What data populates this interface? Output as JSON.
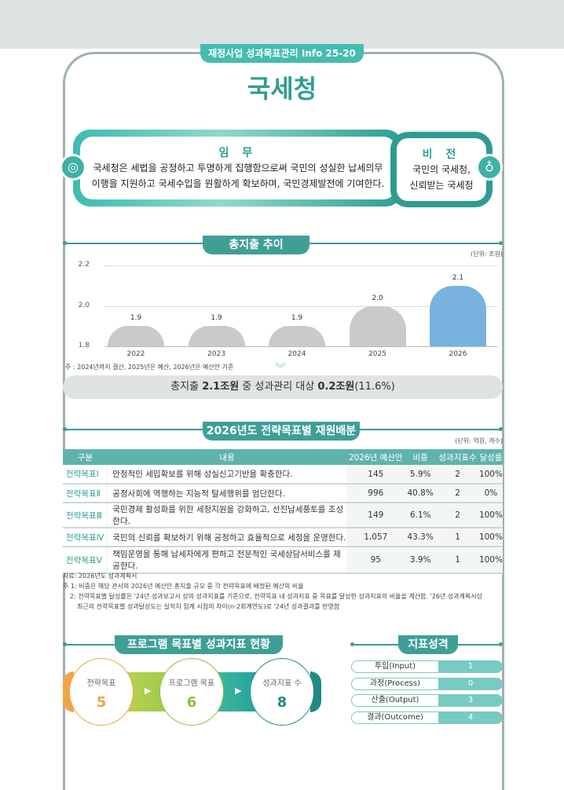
{
  "header": {
    "series_badge": "재정사업 성과목표관리 Info 25-20",
    "title": "국세청"
  },
  "mission": {
    "heading": "임 무",
    "line1": "국세청은 세법을 공정하고 투명하게 집행함으로써 국민의 성실한 납세의무",
    "line2": "이행을 지원하고 국세수입을 원활하게 확보하며, 국민경제발전에 기여한다.",
    "icon": "target-icon"
  },
  "vision": {
    "heading": "비 전",
    "line1": "국민의 국세청,",
    "line2": "신뢰받는 국세청",
    "icon": "lightbulb-icon"
  },
  "spending": {
    "section_title": "총지출 추이",
    "unit": "(단위: 조원)",
    "note": "주 : 2024년까지 결산, 2025년은 예산, 2026년은 예산안 기준",
    "summary": {
      "p1": "총지출 ",
      "v1": "2.1조원",
      "p2": " 중 성과관리 대상 ",
      "v2": "0.2조원",
      "p3": "(11.6%)"
    }
  },
  "chart_data": {
    "type": "bar",
    "categories": [
      "2022",
      "2023",
      "2024",
      "2025",
      "2026"
    ],
    "values": [
      1.9,
      1.9,
      1.9,
      2.0,
      2.1
    ],
    "value_labels": [
      "1.9",
      "1.9",
      "1.9",
      "2.0",
      "2.1"
    ],
    "ylim": [
      1.8,
      2.2
    ],
    "yticks": [
      "1.8",
      "2.0",
      "2.2"
    ],
    "grid": true,
    "unit": "(단위: 조원)",
    "colors": [
      "#c9cacb",
      "#c9cacb",
      "#c9cacb",
      "#c9cacb",
      "#78b3e0"
    ]
  },
  "allocation": {
    "section_title": "2026년도 전략목표별 재원배분",
    "unit": "(단위: 억원, 개수)",
    "columns": [
      "구분",
      "내용",
      "2026년 예산안",
      "비중",
      "성과지표수",
      "달성률"
    ],
    "rows": [
      {
        "goal": "전략목표Ⅰ",
        "content": "안정적인 세입확보를 위해 성실신고기반을 확충한다.",
        "budget": "145",
        "share": "5.9%",
        "indicators": "2",
        "rate": "100%"
      },
      {
        "goal": "전략목표Ⅱ",
        "content": "공정사회에 역행하는 지능적 탈세행위를 엄단한다.",
        "budget": "996",
        "share": "40.8%",
        "indicators": "2",
        "rate": "0%"
      },
      {
        "goal": "전략목표Ⅲ",
        "content": "국민경제 활성화를 위한 세정지원을 강화하고, 선진납세풍토를 조성한다.",
        "budget": "149",
        "share": "6.1%",
        "indicators": "2",
        "rate": "100%"
      },
      {
        "goal": "전략목표Ⅳ",
        "content": "국민의 신뢰를 확보하기 위해 공정하고 효율적으로 세정을 운영한다.",
        "budget": "1,057",
        "share": "43.3%",
        "indicators": "1",
        "rate": "100%"
      },
      {
        "goal": "전략목표Ⅴ",
        "content": "책임운영을 통해 납세자에게 편하고 전문적인 국세상담서비스를 제공한다.",
        "budget": "95",
        "share": "3.9%",
        "indicators": "1",
        "rate": "100%"
      }
    ],
    "notes": [
      "자료: 2026년도 성과계획서",
      "주 1: 비중은 해당 관서의 2026년 예산안 총지출 규모 중 각 전략목표에 배정된 예산의 비율",
      "2: 전략목표별 달성률은 '24년 성과보고서 상의 성과지표를 기준으로, 전략목표 내 성과지표 중 목표를 달성한 성과지표의 비율을 계산함. '26년 성과계획서상",
      "최근의 전략목표별 성과달성도는 실적치 집계 시점의 차이(n-2회계연도)로 '24년 성과결과를 반영함"
    ]
  },
  "program": {
    "section_title": "프로그램 목표별 성과지표 현황",
    "items": [
      {
        "label": "전략목표",
        "value": "5",
        "color": "#f0a445"
      },
      {
        "label": "프로그램 목표",
        "value": "6",
        "color": "#8dbf45"
      },
      {
        "label": "성과지표 수",
        "value": "8",
        "color": "#218a86"
      }
    ]
  },
  "indicator_type": {
    "section_title": "지표성격",
    "rows": [
      {
        "label": "투입(Input)",
        "value": "1"
      },
      {
        "label": "과정(Process)",
        "value": "0"
      },
      {
        "label": "산출(Output)",
        "value": "3"
      },
      {
        "label": "결과(Outcome)",
        "value": "4"
      }
    ]
  }
}
